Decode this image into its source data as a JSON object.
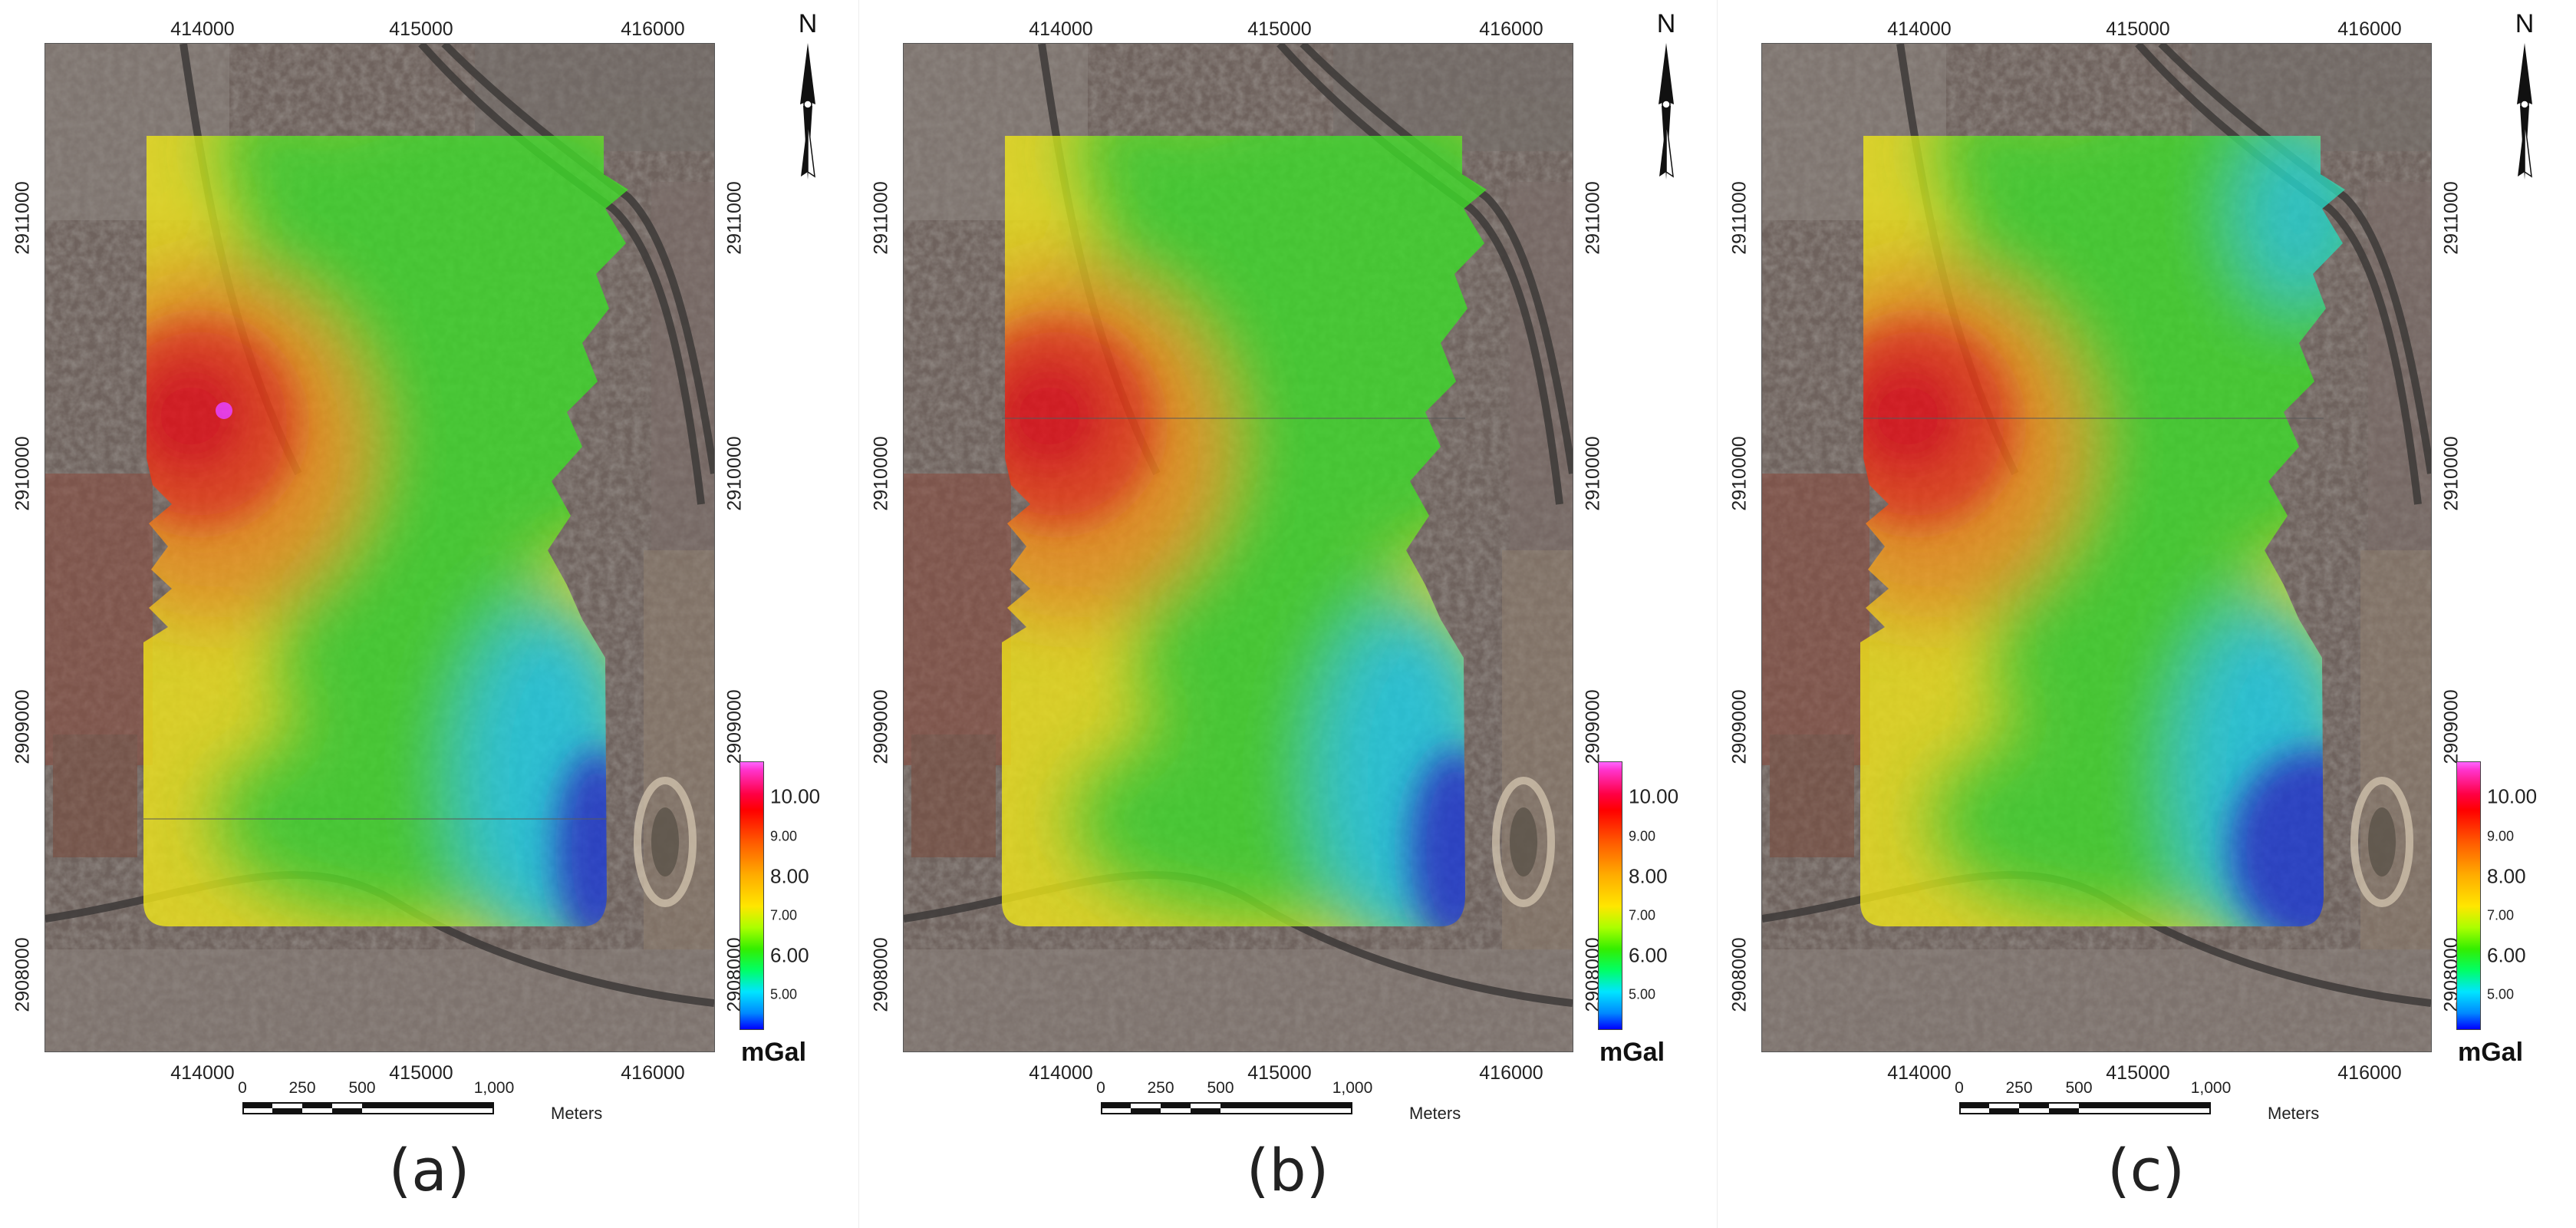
{
  "figure": {
    "unit": "mGal",
    "north_label": "N",
    "x_ticks": [
      "414000",
      "415000",
      "416000"
    ],
    "y_ticks": [
      "2911000",
      "2910000",
      "2909000",
      "2908000"
    ],
    "legend_labels": [
      {
        "text": "10.00",
        "value": 10.0,
        "big": true
      },
      {
        "text": "9.00",
        "value": 9.0,
        "big": false
      },
      {
        "text": "8.00",
        "value": 8.0,
        "big": true
      },
      {
        "text": "7.00",
        "value": 7.0,
        "big": false
      },
      {
        "text": "6.00",
        "value": 6.0,
        "big": true
      },
      {
        "text": "5.00",
        "value": 5.0,
        "big": false
      }
    ],
    "scale_bar": {
      "labels": [
        "0",
        "250",
        "500",
        "1,000"
      ],
      "unit": "Meters"
    },
    "colors": {
      "high": "#ff0000",
      "mid_high": "#ffe600",
      "mid": "#33ee00",
      "low": "#00e5ff",
      "lowest": "#0000ff",
      "peak": "#ff33ff",
      "imagery_base": "#6e625d"
    }
  },
  "panels": [
    {
      "caption": "(a)"
    },
    {
      "caption": "(b)"
    },
    {
      "caption": "(c)"
    }
  ]
}
